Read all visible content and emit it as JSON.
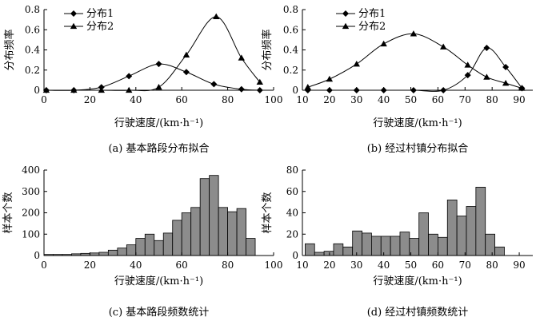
{
  "chart_data": [
    {
      "id": "a",
      "type": "line",
      "caption": "(a) 基本路段分布拟合",
      "xlabel": "行驶速度/(km·h⁻¹)",
      "ylabel": "分布频率",
      "xlim": [
        0,
        100
      ],
      "ylim": [
        0,
        0.8
      ],
      "xticks": [
        0,
        20,
        40,
        60,
        80,
        100
      ],
      "yticks": [
        0,
        0.2,
        0.4,
        0.6,
        0.8
      ],
      "ytick_labels": [
        "0",
        "0.2",
        "0.4",
        "0.6",
        "0.8"
      ],
      "legend": "top-left",
      "series": [
        {
          "name": "分布1",
          "marker": "diamond",
          "x": [
            1,
            13,
            25,
            37,
            50,
            62,
            74,
            86,
            94
          ],
          "y": [
            0,
            0,
            0.03,
            0.14,
            0.26,
            0.18,
            0.06,
            0.01,
            0
          ]
        },
        {
          "name": "分布2",
          "marker": "triangle",
          "x": [
            1,
            13,
            25,
            37,
            50,
            62,
            75,
            86,
            94
          ],
          "y": [
            0,
            0,
            0,
            0,
            0.03,
            0.35,
            0.73,
            0.32,
            0.08
          ]
        }
      ]
    },
    {
      "id": "b",
      "type": "line",
      "caption": "(b) 经过村镇分布拟合",
      "xlabel": "行驶速度/(km·h⁻¹)",
      "ylabel": "分布频率",
      "xlim": [
        10,
        95
      ],
      "ylim": [
        0,
        0.8
      ],
      "xticks": [
        10,
        20,
        30,
        40,
        50,
        60,
        70,
        80,
        90
      ],
      "yticks": [
        0,
        0.2,
        0.4,
        0.6,
        0.8
      ],
      "ytick_labels": [
        "0",
        "0.2",
        "0.4",
        "0.6",
        "0.8"
      ],
      "legend": "top-left",
      "series": [
        {
          "name": "分布1",
          "marker": "diamond",
          "x": [
            12,
            20,
            30,
            40,
            51,
            62,
            71,
            78,
            85,
            91
          ],
          "y": [
            0,
            0,
            0,
            0,
            0,
            0,
            0.15,
            0.42,
            0.23,
            0.02
          ]
        },
        {
          "name": "分布2",
          "marker": "triangle",
          "x": [
            12,
            20,
            30,
            40,
            51,
            62,
            71,
            78,
            85,
            91
          ],
          "y": [
            0.03,
            0.11,
            0.26,
            0.46,
            0.56,
            0.43,
            0.25,
            0.13,
            0.07,
            0.02
          ]
        }
      ]
    },
    {
      "id": "c",
      "type": "bar",
      "caption": "(c) 基本路段频数统计",
      "xlabel": "行驶速度/(km·h⁻¹)",
      "ylabel": "样本个数",
      "xlim": [
        0,
        100
      ],
      "ylim": [
        0,
        400
      ],
      "xticks": [
        0,
        20,
        40,
        60,
        80,
        100
      ],
      "yticks": [
        0,
        100,
        200,
        300,
        400
      ],
      "bin_width": 4,
      "bin_start": [
        0,
        4,
        8,
        12,
        16,
        20,
        24,
        28,
        32,
        36,
        40,
        44,
        48,
        52,
        56,
        60,
        64,
        68,
        72,
        76,
        80,
        84,
        88
      ],
      "values": [
        5,
        5,
        5,
        8,
        10,
        12,
        15,
        25,
        35,
        50,
        80,
        100,
        70,
        105,
        165,
        200,
        225,
        360,
        375,
        225,
        205,
        220,
        80
      ]
    },
    {
      "id": "d",
      "type": "bar",
      "caption": "(d) 经过村镇频数统计",
      "xlabel": "行驶速度/(km·h⁻¹)",
      "ylabel": "样本个数",
      "xlim": [
        10,
        95
      ],
      "ylim": [
        0,
        80
      ],
      "xticks": [
        10,
        20,
        30,
        40,
        50,
        60,
        70,
        80,
        90
      ],
      "yticks": [
        0,
        20,
        40,
        60,
        80
      ],
      "bin_width": 3.5,
      "bin_start": [
        11,
        14.5,
        18,
        21.5,
        25,
        28.5,
        32,
        35.5,
        39,
        42.5,
        46,
        49.5,
        53,
        56.5,
        60,
        63.5,
        67,
        70.5,
        74,
        77.5,
        81,
        84.5,
        88
      ],
      "values": [
        11,
        3,
        4,
        11,
        8,
        23,
        21,
        18,
        18,
        18,
        22,
        16,
        40,
        20,
        17,
        52,
        37,
        46,
        64,
        20,
        8,
        0,
        0
      ]
    }
  ]
}
